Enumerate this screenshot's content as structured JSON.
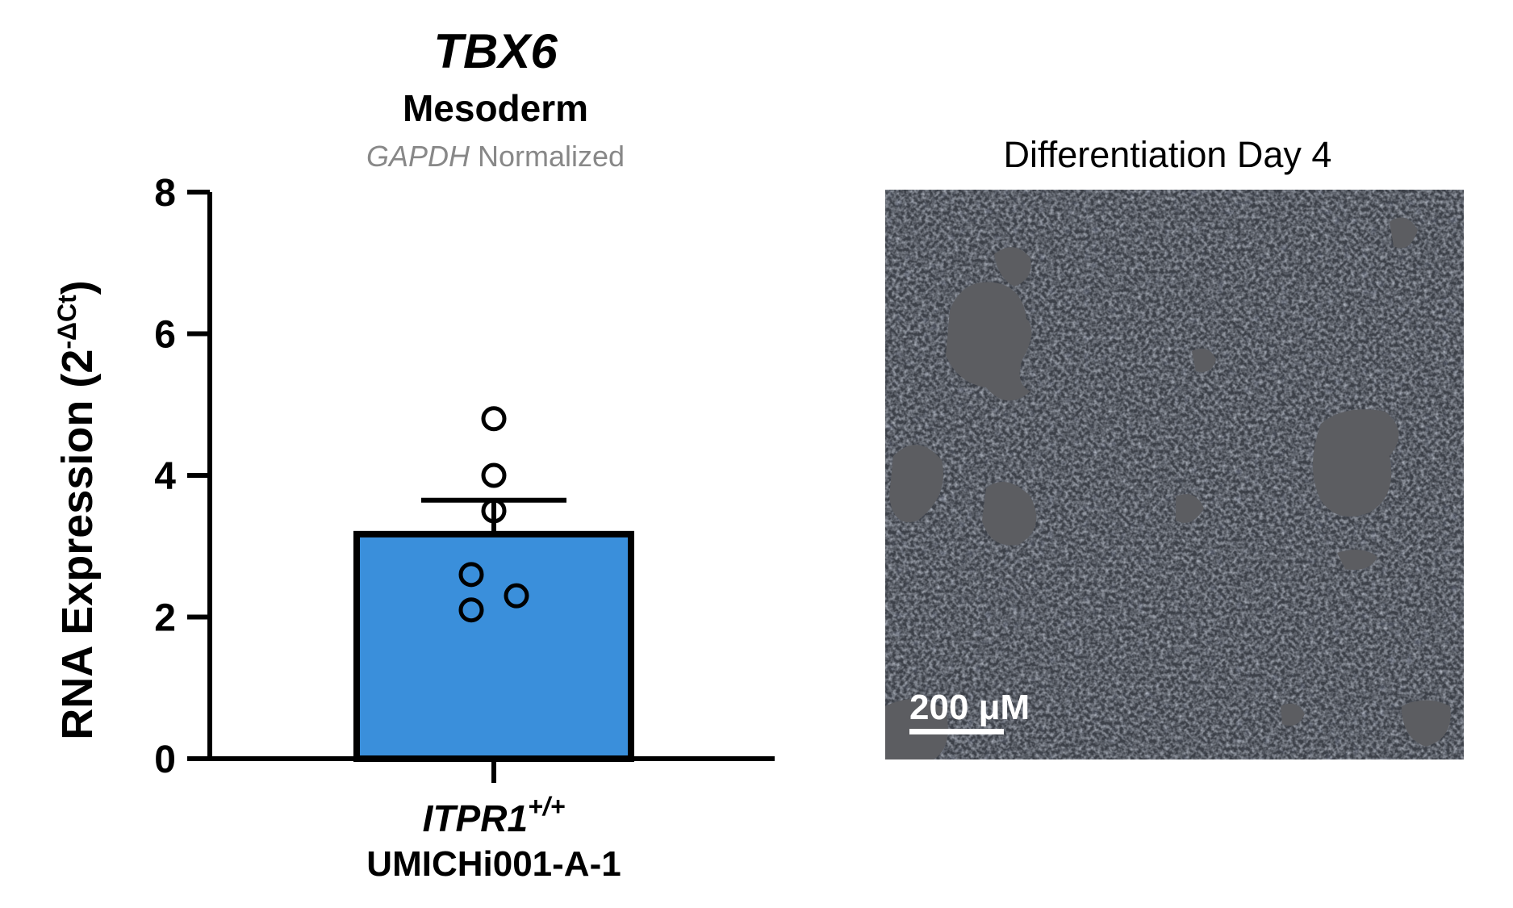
{
  "chart_data": {
    "type": "bar",
    "title": "TBX6",
    "subtitle": "Mesoderm",
    "normalization": {
      "italic_part": "GAPDH",
      "plain_part": " Normalized"
    },
    "ylabel": {
      "main": "RNA Expression (2",
      "superscript": "-ΔCt",
      "close": ")"
    },
    "ylim": [
      0,
      8
    ],
    "yticks": [
      0,
      2,
      4,
      6,
      8
    ],
    "categories": [
      "ITPR1+/+ UMICHi001-A-1"
    ],
    "category_label": {
      "gene": "ITPR1",
      "genotype": "+/+",
      "line": "UMICHi001-A-1"
    },
    "values": [
      3.17
    ],
    "error_upper": [
      3.65
    ],
    "points": [
      4.8,
      4.0,
      3.5,
      2.6,
      2.1,
      2.3
    ],
    "bar_color": "#3a8fdb",
    "edge_color": "#000000",
    "grid": false
  },
  "micrograph": {
    "title": "Differentiation Day 4",
    "scale_label": "200 μM",
    "background_color": "#3b3e44"
  }
}
